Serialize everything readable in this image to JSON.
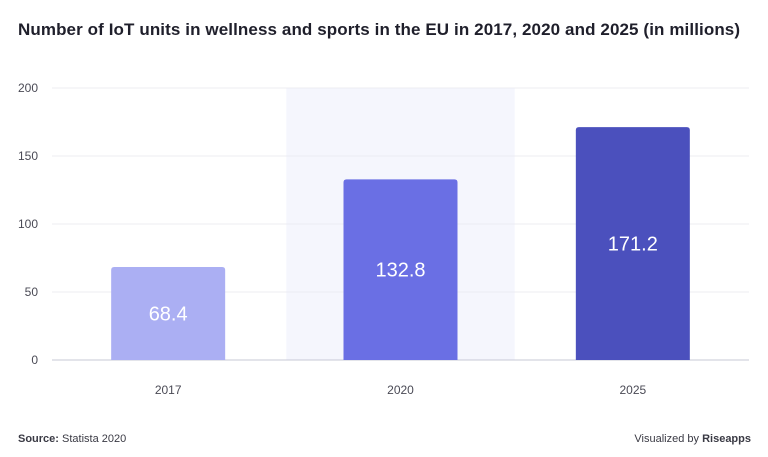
{
  "chart_data": {
    "type": "bar",
    "title": "Number of IoT units in wellness and sports in the EU in 2017, 2020 and 2025 (in millions)",
    "categories": [
      "2017",
      "2020",
      "2025"
    ],
    "values": [
      68.4,
      132.8,
      171.2
    ],
    "value_labels": [
      "68.4",
      "132.8",
      "171.2"
    ],
    "bar_colors": [
      "#abaff3",
      "#6a6fe4",
      "#4b50bd"
    ],
    "highlight_category": "2020",
    "highlight_color": "#f5f6fd",
    "ylim": [
      0,
      200
    ],
    "yticks": [
      0,
      50,
      100,
      150,
      200
    ],
    "xlabel": "",
    "ylabel": "",
    "grid": true
  },
  "footer": {
    "source_label": "Source:",
    "source_text": "Statista 2020",
    "credit_prefix": "Visualized by",
    "credit_brand": "Riseapps"
  }
}
